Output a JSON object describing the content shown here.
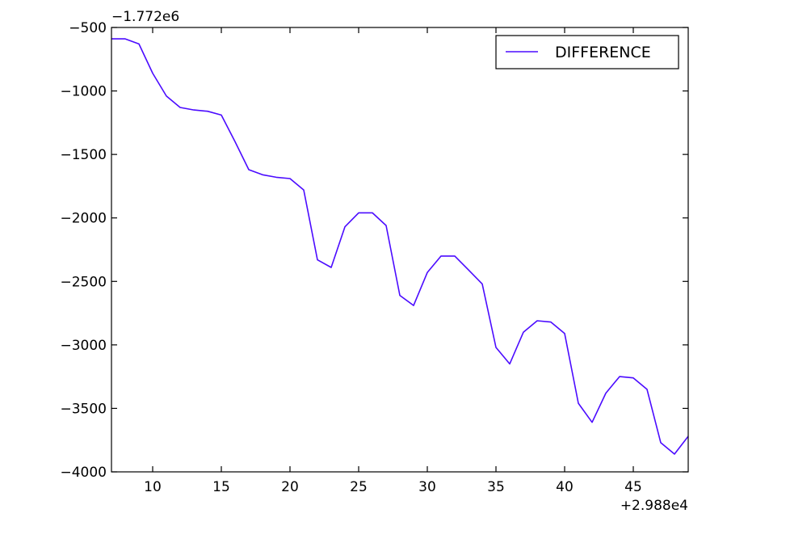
{
  "chart_data": {
    "type": "line",
    "title": "",
    "xlabel": "",
    "ylabel": "",
    "x_offset_label": "+2.988e4",
    "y_offset_label": "−1.772e6",
    "xlim": [
      7,
      49
    ],
    "ylim": [
      -4000,
      -500
    ],
    "x_ticks": [
      10,
      15,
      20,
      25,
      30,
      35,
      40,
      45
    ],
    "x_tick_labels": [
      "10",
      "15",
      "20",
      "25",
      "30",
      "35",
      "40",
      "45"
    ],
    "y_ticks": [
      -500,
      -1000,
      -1500,
      -2000,
      -2500,
      -3000,
      -3500,
      -4000
    ],
    "y_tick_labels": [
      "−500",
      "−1000",
      "−1500",
      "−2000",
      "−2500",
      "−3000",
      "−3500",
      "−4000"
    ],
    "grid": false,
    "legend_position": "top-right",
    "series": [
      {
        "name": "DIFFERENCE",
        "color": "#4b0bff",
        "x": [
          7,
          8,
          9,
          10,
          11,
          12,
          13,
          14,
          15,
          16,
          17,
          18,
          19,
          20,
          21,
          22,
          23,
          24,
          25,
          26,
          27,
          28,
          29,
          30,
          31,
          32,
          33,
          34,
          35,
          36,
          37,
          38,
          39,
          40,
          41,
          42,
          43,
          44,
          45,
          46,
          47,
          48,
          49
        ],
        "y": [
          -590,
          -590,
          -630,
          -860,
          -1040,
          -1130,
          -1150,
          -1160,
          -1190,
          -1400,
          -1620,
          -1660,
          -1680,
          -1690,
          -1780,
          -2330,
          -2390,
          -2070,
          -1960,
          -1960,
          -2060,
          -2610,
          -2690,
          -2430,
          -2300,
          -2300,
          -2410,
          -2520,
          -3020,
          -3150,
          -2900,
          -2810,
          -2820,
          -2910,
          -3460,
          -3610,
          -3380,
          -3250,
          -3260,
          -3350,
          -3770,
          -3860,
          -3720
        ]
      }
    ]
  }
}
